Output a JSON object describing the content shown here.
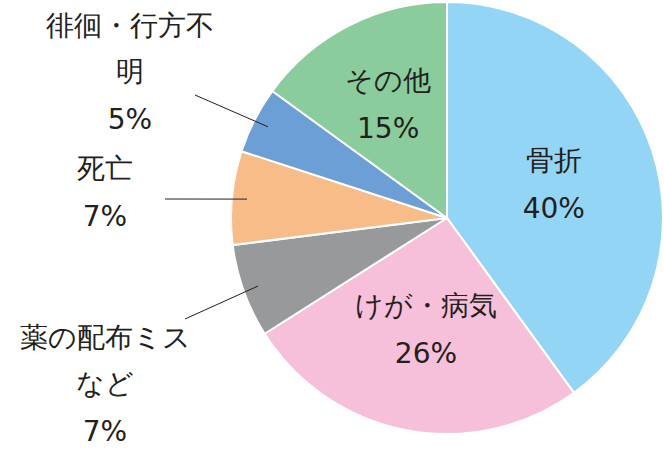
{
  "chart_data": {
    "type": "pie",
    "categories": [
      "骨折",
      "けが・病気",
      "薬の配布ミスなど",
      "死亡",
      "徘徊・行方不明",
      "その他"
    ],
    "values": [
      40,
      26,
      7,
      7,
      5,
      15
    ],
    "value_labels": [
      "40%",
      "26%",
      "7%",
      "7%",
      "5%",
      "15%"
    ],
    "colors": [
      "#93d5f5",
      "#f6c0da",
      "#98999b",
      "#f8bc88",
      "#6b9fd5",
      "#8acc9b"
    ],
    "data_labels": true
  }
}
